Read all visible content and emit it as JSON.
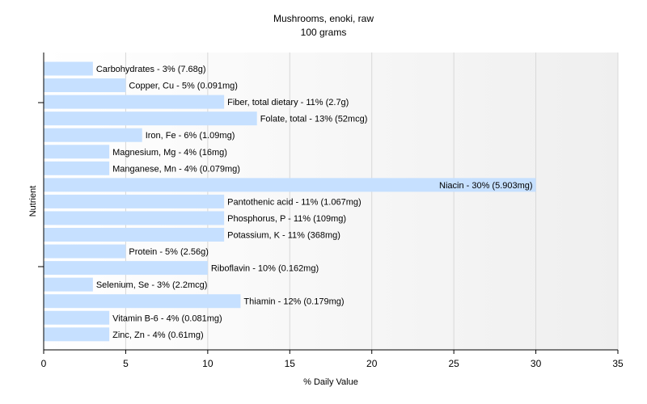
{
  "chart_data": {
    "type": "bar",
    "orientation": "horizontal",
    "title": "Mushrooms, enoki, raw",
    "subtitle": "100 grams",
    "xlabel": "% Daily Value",
    "ylabel": "Nutrient",
    "xlim": [
      0,
      35
    ],
    "xticks": [
      0,
      5,
      10,
      15,
      20,
      25,
      30,
      35
    ],
    "grid": "vertical",
    "bar_color": "#c6e0ff",
    "categories": [
      "Carbohydrates",
      "Copper, Cu",
      "Fiber, total dietary",
      "Folate, total",
      "Iron, Fe",
      "Magnesium, Mg",
      "Manganese, Mn",
      "Niacin",
      "Pantothenic acid",
      "Phosphorus, P",
      "Potassium, K",
      "Protein",
      "Riboflavin",
      "Selenium, Se",
      "Thiamin",
      "Vitamin B-6",
      "Zinc, Zn"
    ],
    "values": [
      3,
      5,
      11,
      13,
      6,
      4,
      4,
      30,
      11,
      11,
      11,
      5,
      10,
      3,
      12,
      4,
      4
    ],
    "labels": [
      "Carbohydrates - 3% (7.68g)",
      "Copper, Cu - 5% (0.091mg)",
      "Fiber, total dietary - 11% (2.7g)",
      "Folate, total - 13% (52mcg)",
      "Iron, Fe - 6% (1.09mg)",
      "Magnesium, Mg - 4% (16mg)",
      "Manganese, Mn - 4% (0.079mg)",
      "Niacin - 30% (5.903mg)",
      "Pantothenic acid - 11% (1.067mg)",
      "Phosphorus, P - 11% (109mg)",
      "Potassium, K - 11% (368mg)",
      "Protein - 5% (2.56g)",
      "Riboflavin - 10% (0.162mg)",
      "Selenium, Se - 3% (2.2mcg)",
      "Thiamin - 12% (0.179mg)",
      "Vitamin B-6 - 4% (0.081mg)",
      "Zinc, Zn - 4% (0.61mg)"
    ]
  }
}
